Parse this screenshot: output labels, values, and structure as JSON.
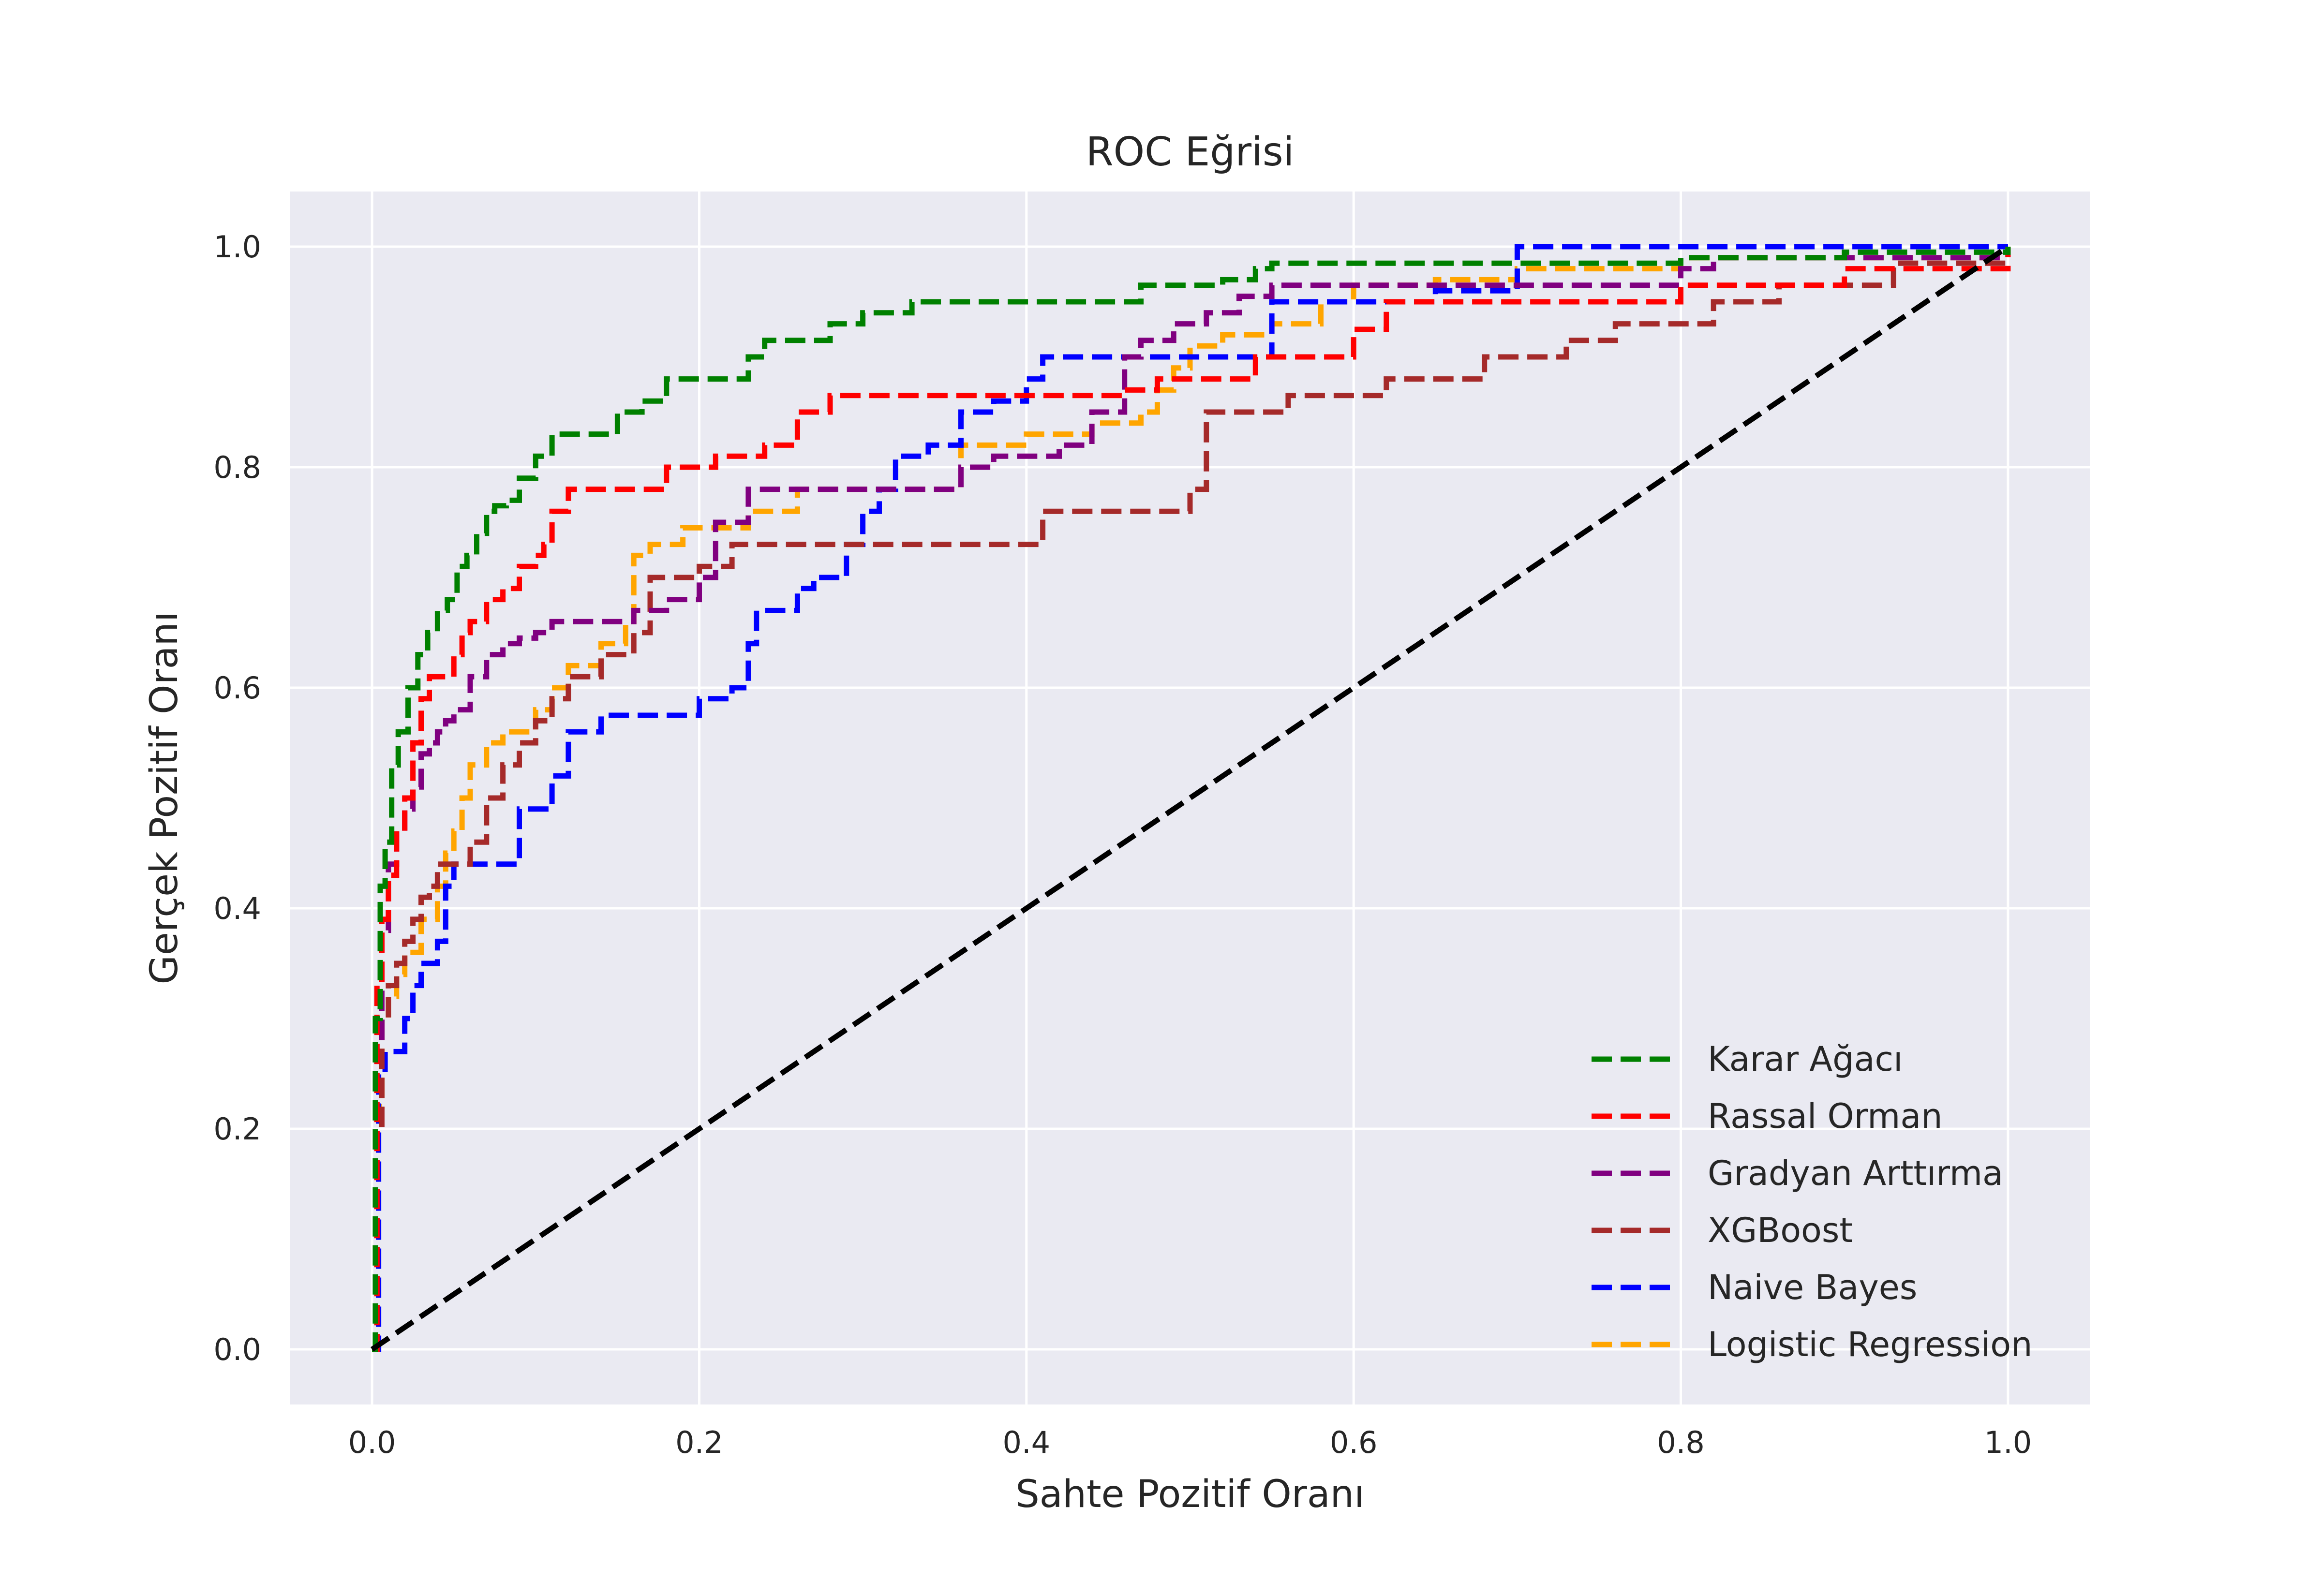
{
  "chart_data": {
    "type": "line",
    "title": "ROC Eğrisi",
    "xlabel": "Sahte Pozitif Oranı",
    "ylabel": "Gerçek Pozitif Oranı",
    "xlim": [
      -0.05,
      1.05
    ],
    "ylim": [
      -0.05,
      1.05
    ],
    "xticks": [
      "0.0",
      "0.2",
      "0.4",
      "0.6",
      "0.8",
      "1.0"
    ],
    "yticks": [
      "0.0",
      "0.2",
      "0.4",
      "0.6",
      "0.8",
      "1.0"
    ],
    "grid": true,
    "background_color": "#eaeaf2",
    "legend_position": "lower-right",
    "diagonal": {
      "x": [
        0,
        1
      ],
      "y": [
        0,
        1
      ],
      "color": "#000000"
    },
    "series": [
      {
        "name": "Karar Ağacı",
        "color": "#008000",
        "x": [
          0,
          0.002,
          0.005,
          0.008,
          0.012,
          0.016,
          0.022,
          0.028,
          0.034,
          0.04,
          0.046,
          0.052,
          0.058,
          0.064,
          0.07,
          0.075,
          0.082,
          0.09,
          0.1,
          0.11,
          0.115,
          0.125,
          0.15,
          0.165,
          0.18,
          0.19,
          0.2,
          0.23,
          0.24,
          0.26,
          0.28,
          0.3,
          0.33,
          0.36,
          0.4,
          0.46,
          0.47,
          0.5,
          0.52,
          0.54,
          0.55,
          0.6,
          0.7,
          0.75,
          0.8,
          0.85,
          0.9,
          1.0
        ],
        "y": [
          0,
          0.3,
          0.42,
          0.46,
          0.53,
          0.56,
          0.6,
          0.63,
          0.65,
          0.67,
          0.68,
          0.71,
          0.72,
          0.74,
          0.76,
          0.765,
          0.77,
          0.79,
          0.81,
          0.83,
          0.83,
          0.83,
          0.85,
          0.86,
          0.88,
          0.88,
          0.88,
          0.9,
          0.915,
          0.915,
          0.93,
          0.94,
          0.95,
          0.95,
          0.95,
          0.95,
          0.965,
          0.965,
          0.97,
          0.98,
          0.985,
          0.985,
          0.985,
          0.985,
          0.99,
          0.99,
          0.995,
          1.0
        ]
      },
      {
        "name": "Rassal Orman",
        "color": "#ff0000",
        "x": [
          0,
          0.003,
          0.006,
          0.01,
          0.015,
          0.02,
          0.025,
          0.03,
          0.035,
          0.04,
          0.05,
          0.055,
          0.06,
          0.07,
          0.08,
          0.09,
          0.1,
          0.105,
          0.11,
          0.12,
          0.16,
          0.18,
          0.21,
          0.24,
          0.26,
          0.28,
          0.34,
          0.4,
          0.46,
          0.48,
          0.52,
          0.54,
          0.6,
          0.62,
          0.72,
          0.8,
          0.9,
          1.0
        ],
        "y": [
          0,
          0.33,
          0.39,
          0.43,
          0.47,
          0.5,
          0.55,
          0.59,
          0.61,
          0.61,
          0.63,
          0.65,
          0.66,
          0.68,
          0.69,
          0.71,
          0.72,
          0.73,
          0.76,
          0.78,
          0.78,
          0.8,
          0.81,
          0.82,
          0.85,
          0.865,
          0.865,
          0.865,
          0.87,
          0.88,
          0.88,
          0.9,
          0.925,
          0.95,
          0.95,
          0.965,
          0.98,
          1.0
        ]
      },
      {
        "name": "Gradyan Arttırma",
        "color": "#800080",
        "x": [
          0,
          0.003,
          0.006,
          0.01,
          0.015,
          0.02,
          0.025,
          0.03,
          0.035,
          0.04,
          0.045,
          0.05,
          0.06,
          0.07,
          0.08,
          0.09,
          0.1,
          0.11,
          0.14,
          0.16,
          0.18,
          0.2,
          0.21,
          0.23,
          0.3,
          0.33,
          0.36,
          0.38,
          0.42,
          0.44,
          0.46,
          0.47,
          0.49,
          0.51,
          0.53,
          0.55,
          0.6,
          0.75,
          0.8,
          0.82,
          1.0
        ],
        "y": [
          0,
          0.28,
          0.38,
          0.44,
          0.47,
          0.49,
          0.51,
          0.54,
          0.55,
          0.56,
          0.57,
          0.58,
          0.61,
          0.63,
          0.64,
          0.645,
          0.65,
          0.66,
          0.66,
          0.67,
          0.68,
          0.7,
          0.75,
          0.78,
          0.78,
          0.78,
          0.8,
          0.81,
          0.82,
          0.85,
          0.9,
          0.915,
          0.93,
          0.94,
          0.955,
          0.965,
          0.965,
          0.965,
          0.98,
          0.99,
          1.0
        ]
      },
      {
        "name": "XGBoost",
        "color": "#a52a2a",
        "x": [
          0,
          0.003,
          0.006,
          0.01,
          0.015,
          0.02,
          0.025,
          0.03,
          0.035,
          0.04,
          0.05,
          0.06,
          0.07,
          0.08,
          0.09,
          0.1,
          0.11,
          0.12,
          0.14,
          0.16,
          0.17,
          0.2,
          0.22,
          0.3,
          0.39,
          0.41,
          0.44,
          0.49,
          0.5,
          0.51,
          0.54,
          0.56,
          0.6,
          0.62,
          0.67,
          0.68,
          0.7,
          0.71,
          0.73,
          0.75,
          0.76,
          0.8,
          0.82,
          0.84,
          0.86,
          0.9,
          0.93,
          1.0
        ],
        "y": [
          0,
          0.2,
          0.3,
          0.33,
          0.35,
          0.37,
          0.39,
          0.41,
          0.42,
          0.44,
          0.44,
          0.46,
          0.5,
          0.53,
          0.55,
          0.57,
          0.59,
          0.61,
          0.63,
          0.65,
          0.7,
          0.71,
          0.73,
          0.73,
          0.73,
          0.76,
          0.76,
          0.76,
          0.78,
          0.85,
          0.85,
          0.865,
          0.865,
          0.88,
          0.88,
          0.9,
          0.9,
          0.9,
          0.915,
          0.915,
          0.93,
          0.93,
          0.95,
          0.95,
          0.965,
          0.965,
          0.985,
          1.0
        ]
      },
      {
        "name": "Naive Bayes",
        "color": "#0000ff",
        "x": [
          0,
          0.004,
          0.008,
          0.02,
          0.025,
          0.03,
          0.04,
          0.045,
          0.05,
          0.08,
          0.09,
          0.1,
          0.11,
          0.12,
          0.13,
          0.14,
          0.18,
          0.2,
          0.22,
          0.23,
          0.235,
          0.26,
          0.27,
          0.29,
          0.3,
          0.31,
          0.32,
          0.34,
          0.36,
          0.38,
          0.4,
          0.41,
          0.46,
          0.54,
          0.55,
          0.61,
          0.65,
          0.7,
          0.82,
          1.0
        ],
        "y": [
          0,
          0.25,
          0.27,
          0.3,
          0.33,
          0.35,
          0.37,
          0.42,
          0.44,
          0.44,
          0.49,
          0.49,
          0.52,
          0.56,
          0.56,
          0.575,
          0.575,
          0.59,
          0.6,
          0.64,
          0.67,
          0.69,
          0.7,
          0.73,
          0.76,
          0.78,
          0.81,
          0.82,
          0.85,
          0.86,
          0.88,
          0.9,
          0.9,
          0.9,
          0.95,
          0.95,
          0.96,
          1.0,
          1.0,
          1.0
        ]
      },
      {
        "name": "Logistic Regression",
        "color": "#ffa500",
        "x": [
          0,
          0.003,
          0.006,
          0.01,
          0.015,
          0.02,
          0.03,
          0.04,
          0.045,
          0.05,
          0.055,
          0.06,
          0.07,
          0.08,
          0.09,
          0.1,
          0.11,
          0.12,
          0.14,
          0.155,
          0.16,
          0.17,
          0.19,
          0.23,
          0.26,
          0.35,
          0.36,
          0.4,
          0.44,
          0.47,
          0.48,
          0.49,
          0.5,
          0.52,
          0.55,
          0.58,
          0.6,
          0.65,
          0.7,
          0.8,
          1.0
        ],
        "y": [
          0,
          0.22,
          0.3,
          0.32,
          0.34,
          0.36,
          0.39,
          0.42,
          0.45,
          0.47,
          0.5,
          0.53,
          0.55,
          0.56,
          0.56,
          0.58,
          0.6,
          0.62,
          0.64,
          0.66,
          0.72,
          0.73,
          0.745,
          0.76,
          0.78,
          0.78,
          0.82,
          0.83,
          0.84,
          0.85,
          0.87,
          0.89,
          0.91,
          0.92,
          0.93,
          0.95,
          0.965,
          0.97,
          0.98,
          0.99,
          1.0
        ]
      }
    ]
  }
}
